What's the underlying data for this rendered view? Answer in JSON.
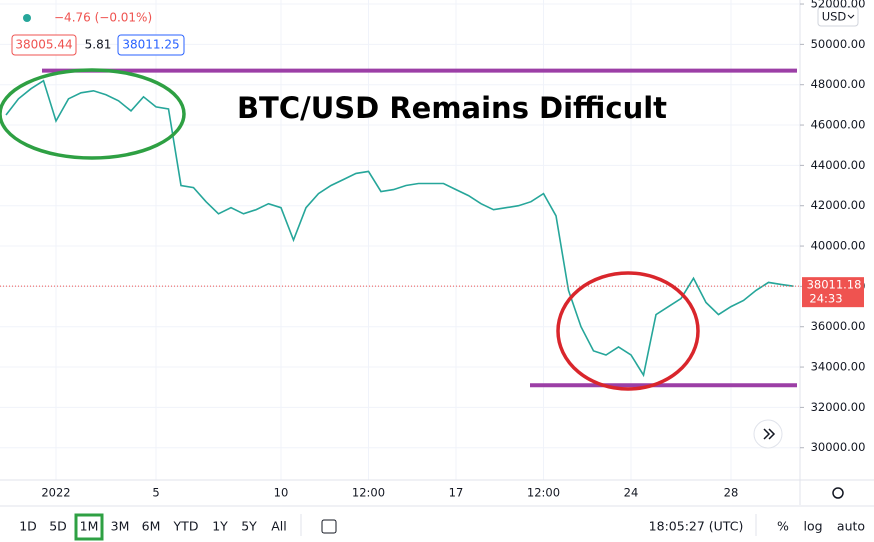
{
  "chart_data": {
    "type": "line",
    "title": "BTC/USD Remains Difficult",
    "categories": [
      null,
      null,
      null,
      null,
      "2022",
      null,
      null,
      null,
      null,
      null,
      null,
      null,
      "5",
      null,
      null,
      null,
      null,
      null,
      null,
      null,
      null,
      null,
      "10",
      null,
      null,
      null,
      null,
      null,
      null,
      "12:00",
      null,
      null,
      null,
      null,
      null,
      null,
      "17",
      null,
      null,
      null,
      null,
      null,
      null,
      "12:00",
      null,
      null,
      null,
      null,
      null,
      null,
      "24",
      null,
      null,
      null,
      null,
      null,
      null,
      null,
      "28",
      null,
      null,
      null,
      null,
      null
    ],
    "series": [
      {
        "name": "BTC/USD",
        "color": "#26a69a",
        "values": [
          46500,
          47300,
          47800,
          48200,
          46200,
          47300,
          47600,
          47700,
          47500,
          47200,
          46700,
          47400,
          46900,
          46800,
          43000,
          42900,
          42200,
          41600,
          41900,
          41600,
          41800,
          42100,
          41900,
          40300,
          41900,
          42600,
          43000,
          43300,
          43600,
          43700,
          42700,
          42800,
          43000,
          43100,
          43100,
          43100,
          42800,
          42500,
          42100,
          41800,
          41900,
          42000,
          42200,
          42600,
          41500,
          37800,
          36000,
          34800,
          34600,
          35000,
          34600,
          33600,
          36600,
          37000,
          37400,
          38400,
          37200,
          36600,
          37000,
          37300,
          37800,
          38200,
          38100,
          38011.18
        ]
      }
    ],
    "ylim": [
      28400,
      52200
    ],
    "yticks": [
      {
        "value": 30000,
        "label": "30000.00"
      },
      {
        "value": 32000,
        "label": "32000.00"
      },
      {
        "value": 34000,
        "label": "34000.00"
      },
      {
        "value": 36000,
        "label": "36000.00"
      },
      {
        "value": 38000,
        "label": "38000.00"
      },
      {
        "value": 40000,
        "label": "40000.00"
      },
      {
        "value": 42000,
        "label": "42000.00"
      },
      {
        "value": 44000,
        "label": "44000.00"
      },
      {
        "value": 46000,
        "label": "46000.00"
      },
      {
        "value": 48000,
        "label": "48000.00"
      },
      {
        "value": 50000,
        "label": "50000.00"
      },
      {
        "value": 52000,
        "label": "52000.00"
      }
    ],
    "grid": true,
    "levels": [
      48700,
      33100
    ],
    "level_color": "#9c3fa6",
    "last_price": 38011.18,
    "countdown": "24:33",
    "currency": "USD"
  },
  "ui": {
    "change": "−4.76 (−0.01%)",
    "bid": "38005.44",
    "spread": "5.81",
    "ask": "38011.25",
    "toolbar": [
      "1D",
      "5D",
      "1M",
      "3M",
      "6M",
      "YTD",
      "1Y",
      "5Y",
      "All"
    ],
    "clock": "18:05:27 (UTC)",
    "percent": "%",
    "log": "log",
    "auto": "auto"
  }
}
